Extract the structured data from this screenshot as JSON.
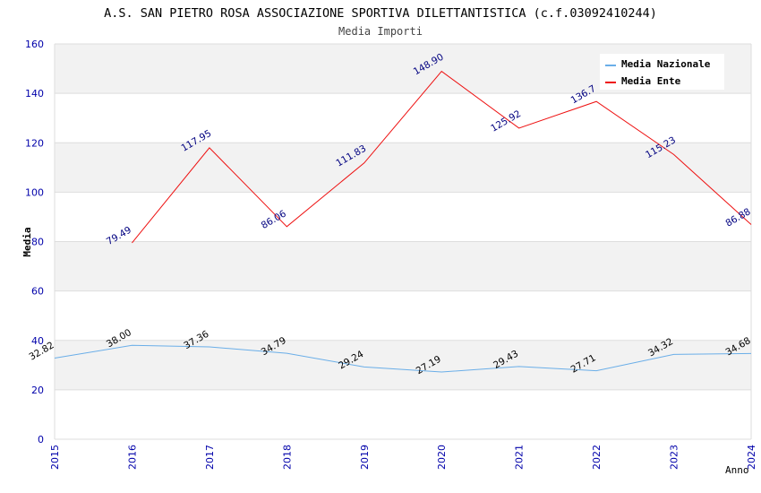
{
  "chart_data": {
    "type": "line",
    "title": "A.S. SAN PIETRO ROSA ASSOCIAZIONE SPORTIVA DILETTANTISTICA (c.f.03092410244)",
    "subtitle": "Media Importi",
    "xlabel": "Anno",
    "ylabel": "Media",
    "ylim": [
      0,
      160
    ],
    "yticks": [
      0,
      20,
      40,
      60,
      80,
      100,
      120,
      140,
      160
    ],
    "categories": [
      "2015",
      "2016",
      "2017",
      "2018",
      "2019",
      "2020",
      "2021",
      "2022",
      "2023",
      "2024"
    ],
    "legend_position": "top-right",
    "grid": true,
    "series": [
      {
        "name": "Media Nazionale",
        "color": "#6aaee8",
        "values": [
          32.82,
          38.0,
          37.36,
          34.79,
          29.24,
          27.19,
          29.43,
          27.71,
          34.32,
          34.68
        ],
        "labels": [
          "32.82",
          "38.00",
          "37.36",
          "34.79",
          "29.24",
          "27.19",
          "29.43",
          "27.71",
          "34.32",
          "34.68"
        ]
      },
      {
        "name": "Media Ente",
        "color": "#ee1111",
        "values": [
          null,
          79.49,
          117.95,
          86.06,
          111.83,
          148.9,
          125.92,
          136.7,
          115.23,
          86.88
        ],
        "labels": [
          null,
          "79.49",
          "117.95",
          "86.06",
          "111.83",
          "148.90",
          "125.92",
          "136.7",
          "115.23",
          "86.88"
        ]
      }
    ]
  }
}
